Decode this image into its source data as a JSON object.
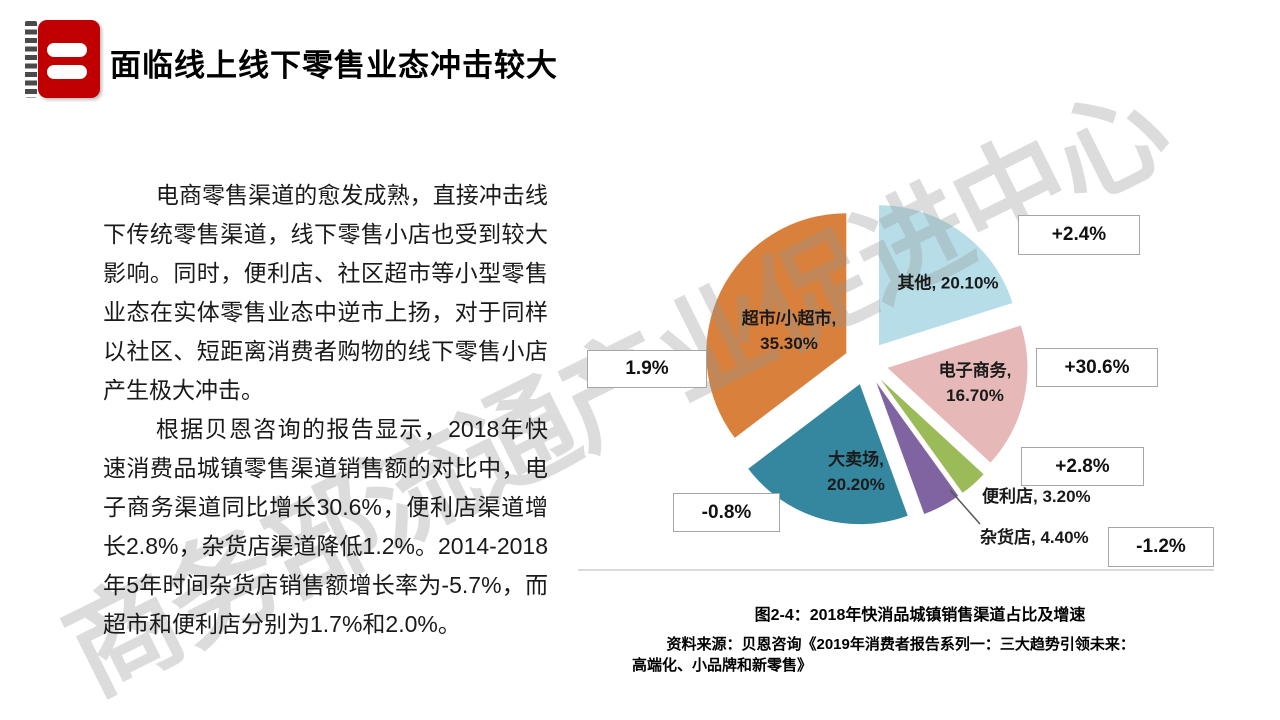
{
  "header": {
    "title": "面临线上线下零售业态冲击较大",
    "icon": "red-notebook-icon"
  },
  "body": {
    "paragraphs": [
      "电商零售渠道的愈发成熟，直接冲击线下传统零售渠道，线下零售小店也受到较大影响。同时，便利店、社区超市等小型零售业态在实体零售业态中逆市上扬，对于同样以社区、短距离消费者购物的线下零售小店产生极大冲击。",
      "根据贝恩咨询的报告显示，2018年快速消费品城镇零售渠道销售额的对比中，电子商务渠道同比增长30.6%，便利店渠道增长2.8%，杂货店渠道降低1.2%。2014-2018年5年时间杂货店销售额增长率为-5.7%，而超市和便利店分别为1.7%和2.0%。"
    ]
  },
  "watermark": {
    "text": "商务部流通产业促进中心"
  },
  "chart_data": {
    "type": "pie",
    "title": "图2-4：2018年快消品城镇销售渠道占比及增速",
    "source": "资料来源：贝恩咨询《2019年消费者报告系列一：三大趋势引领未来：高端化、小品牌和新零售》",
    "source_lines": [
      "资料来源：贝恩咨询《2019年消费者报告系列一：三大趋势引领未来：",
      "高端化、小品牌和新零售》"
    ],
    "layout": {
      "start_angle_deg": 0,
      "direction": "clockwise",
      "exploded": true,
      "legend": "none"
    },
    "slices": [
      {
        "name": "其他",
        "value": 20.1,
        "label_line1": "其他, 20.10%",
        "label_line2": "",
        "growth": "+2.4%",
        "color": "#B7DEE8"
      },
      {
        "name": "电子商务",
        "value": 16.7,
        "label_line1": "电子商务,",
        "label_line2": "16.70%",
        "growth": "+30.6%",
        "color": "#E6B9B8"
      },
      {
        "name": "便利店",
        "value": 3.2,
        "label_line1": "便利店, 3.20%",
        "label_line2": "",
        "growth": "+2.8%",
        "color": "#9BBB59"
      },
      {
        "name": "杂货店",
        "value": 4.4,
        "label_line1": "杂货店, 4.40%",
        "label_line2": "",
        "growth": "-1.2%",
        "color": "#8064A2"
      },
      {
        "name": "大卖场",
        "value": 20.2,
        "label_line1": "大卖场,",
        "label_line2": "20.20%",
        "growth": "-0.8%",
        "color": "#34879E"
      },
      {
        "name": "超市/小超市",
        "value": 35.3,
        "label_line1": "超市/小超市,",
        "label_line2": "35.30%",
        "growth": "1.9%",
        "color": "#D9813C"
      }
    ]
  }
}
